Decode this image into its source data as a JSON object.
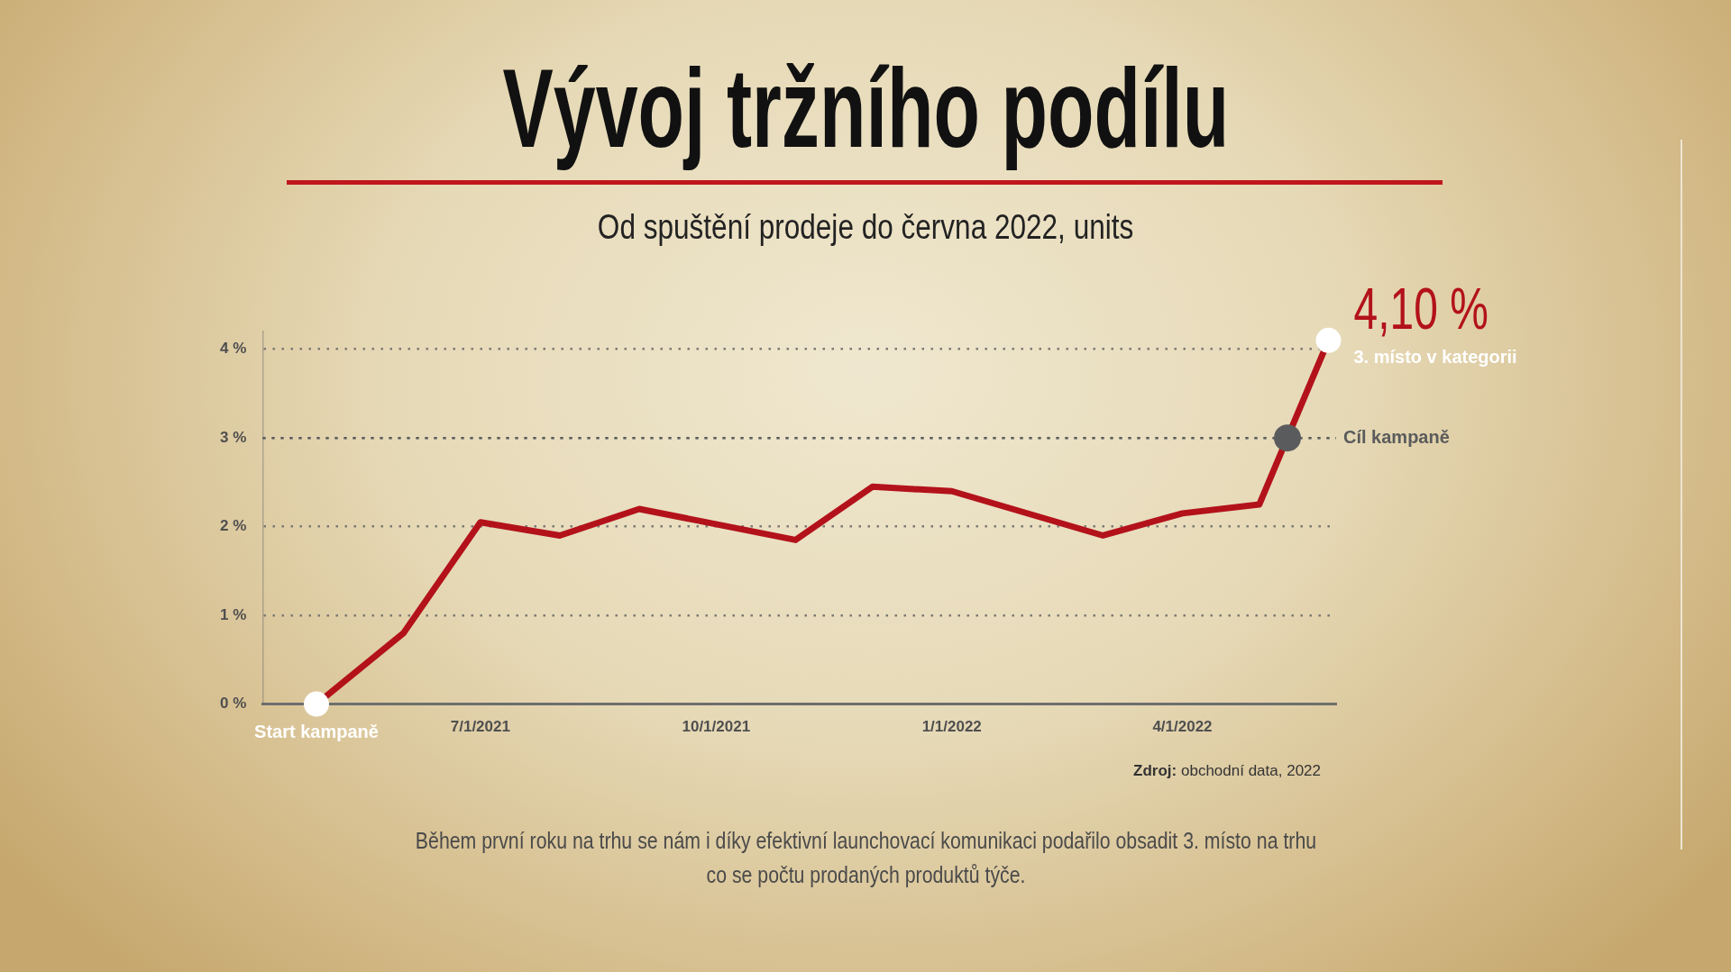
{
  "chart_data": {
    "type": "line",
    "title": "Vývoj tržního podílu",
    "subtitle": "Od spuštění prodeje do června 2022, units",
    "x": [
      "2021-04-28",
      "2021-06-01",
      "2021-07-01",
      "2021-08-01",
      "2021-09-01",
      "2021-11-01",
      "2021-12-01",
      "2022-01-01",
      "2022-03-01",
      "2022-04-01",
      "2022-05-01",
      "2022-05-28"
    ],
    "series": [
      {
        "color": "#b3121b",
        "values": [
          0,
          0.8,
          2.05,
          1.9,
          2.2,
          1.85,
          2.45,
          2.4,
          1.9,
          2.15,
          2.25,
          4.1
        ],
        "value_labels": [
          null,
          null,
          null,
          null,
          null,
          null,
          null,
          null,
          null,
          null,
          null,
          "4,10 %"
        ]
      },
      {
        "type": "scatter",
        "color": "#5a5b5c",
        "marker": "circle",
        "x": [
          "2022-05-12"
        ],
        "values": [
          3
        ]
      }
    ],
    "xlim": [
      "2021-04-07",
      "2022-05-31"
    ],
    "xticks": [
      {
        "value": "2021-07-01",
        "label": "7/1/2021"
      },
      {
        "value": "2021-10-01",
        "label": "10/1/2021"
      },
      {
        "value": "2022-01-01",
        "label": "1/1/2022"
      },
      {
        "value": "2022-04-01",
        "label": "4/1/2022"
      }
    ],
    "ylim": [
      0,
      4.2
    ],
    "yticks": [
      {
        "value": 0,
        "label": "0 %"
      },
      {
        "value": 1,
        "label": "1 %"
      },
      {
        "value": 2,
        "label": "2 %"
      },
      {
        "value": 3,
        "label": "3 %"
      },
      {
        "value": 4,
        "label": "4 %"
      }
    ],
    "grid": "y",
    "line_style": "solid",
    "ref_lines": [
      {
        "axis": "y",
        "value": 3,
        "label": "Cíl kampaně",
        "color": "#5a5b5c",
        "line_style": "dotted"
      }
    ],
    "annotations": [
      {
        "text": "Start kampaně",
        "x": "2021-04-28",
        "y": 0
      },
      {
        "text": "3. místo v kategorii",
        "x": "2022-05-28",
        "y": 4.1
      },
      "Zdroj: obchodní data, 2022",
      "Během první roku na trhu se nám i díky efektivní launchovací komunikaci podařilo obsadit 3. místo na trhu co se počtu prodaných produktů týče."
    ]
  }
}
